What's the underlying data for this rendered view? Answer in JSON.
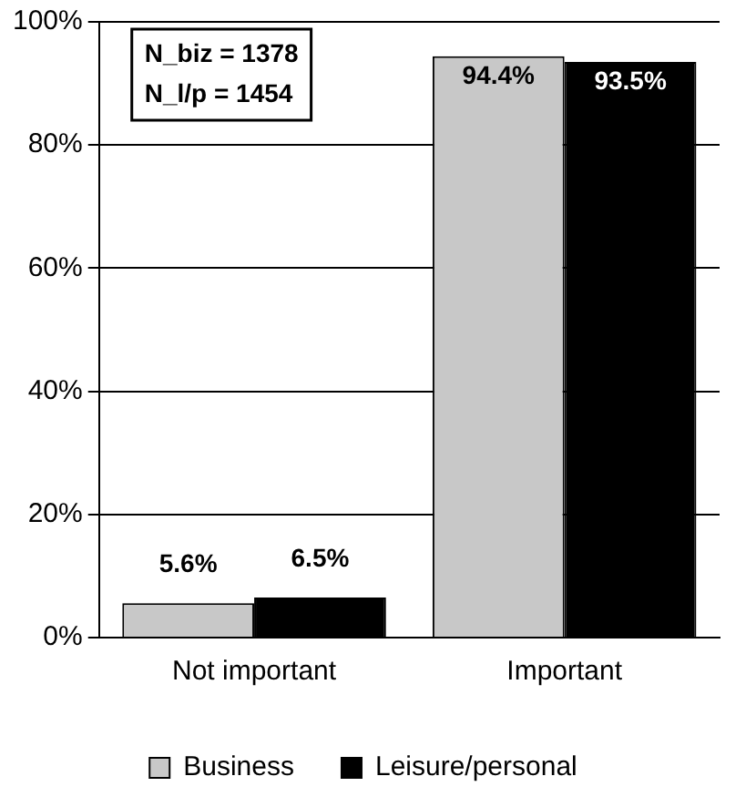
{
  "chart_data": {
    "type": "bar",
    "categories": [
      "Not important",
      "Important"
    ],
    "series": [
      {
        "name": "Business",
        "color": "#c8c8c8",
        "values": [
          5.6,
          94.4
        ],
        "value_labels": [
          "5.6%",
          "94.4%"
        ]
      },
      {
        "name": "Leisure/personal",
        "color": "#000000",
        "values": [
          6.5,
          93.5
        ],
        "value_labels": [
          "6.5%",
          "93.5%"
        ]
      }
    ],
    "ylim": [
      0,
      100
    ],
    "yticks": [
      {
        "value": 0,
        "label": "0%"
      },
      {
        "value": 20,
        "label": "20%"
      },
      {
        "value": 40,
        "label": "40%"
      },
      {
        "value": 60,
        "label": "60%"
      },
      {
        "value": 80,
        "label": "80%"
      },
      {
        "value": 100,
        "label": "100%"
      }
    ],
    "grid": "y",
    "legend": "bottom",
    "annotations": [
      "N_biz = 1378",
      "N_l/p = 1454"
    ]
  }
}
